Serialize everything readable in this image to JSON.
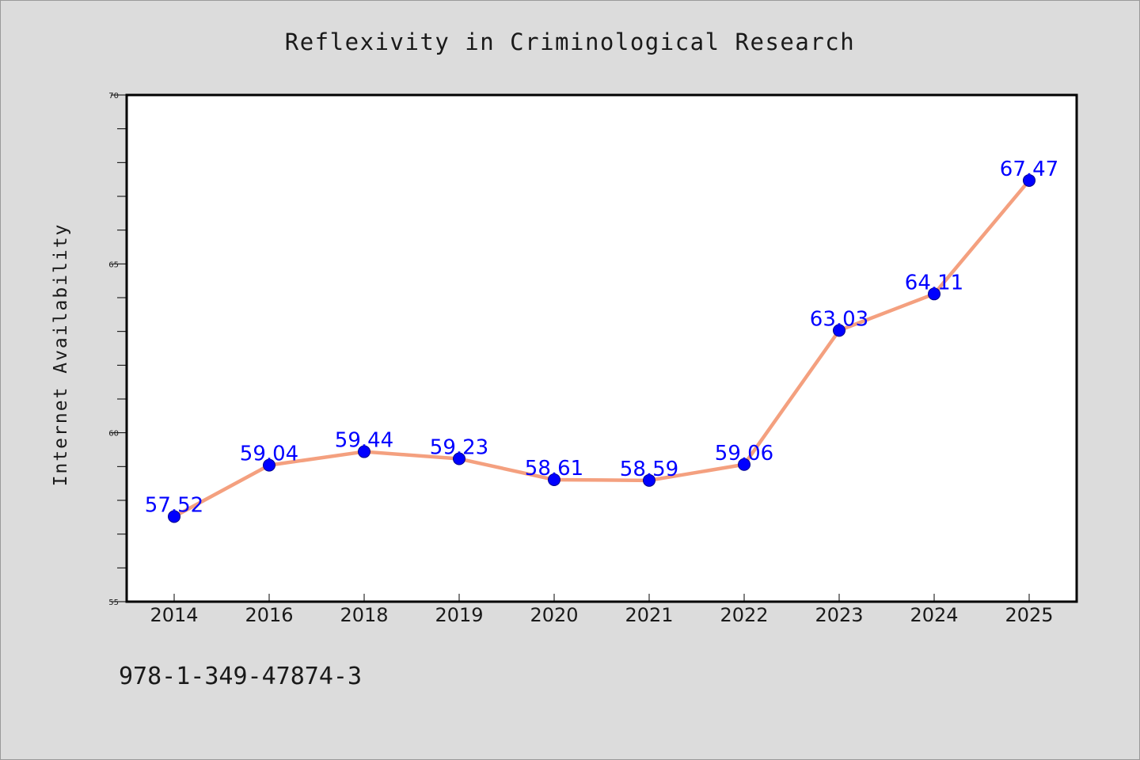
{
  "chart_data": {
    "type": "line",
    "title": "Reflexivity in Criminological Research",
    "xlabel": "",
    "ylabel": "Internet Availability",
    "categories": [
      "2014",
      "2016",
      "2018",
      "2019",
      "2020",
      "2021",
      "2022",
      "2023",
      "2024",
      "2025"
    ],
    "series": [
      {
        "values": [
          57.52,
          59.04,
          59.44,
          59.23,
          58.61,
          58.59,
          59.06,
          63.03,
          64.11,
          67.47
        ],
        "labels": [
          "57.52",
          "59.04",
          "59.44",
          "59.23",
          "58.61",
          "58.59",
          "59.06",
          "63.03",
          "64.11",
          "67.47"
        ]
      }
    ],
    "ylim": [
      55,
      70
    ],
    "yticks": [
      "55",
      "60",
      "65",
      "70"
    ],
    "grid": false,
    "legend": "none",
    "colors": {
      "line": "#f4a07f",
      "marker": "#0000ff",
      "data_label": "#0000ff",
      "plot_background": "#ffffff",
      "figure_background": "#dcdcdc"
    }
  },
  "footnote": "978-1-349-47874-3"
}
